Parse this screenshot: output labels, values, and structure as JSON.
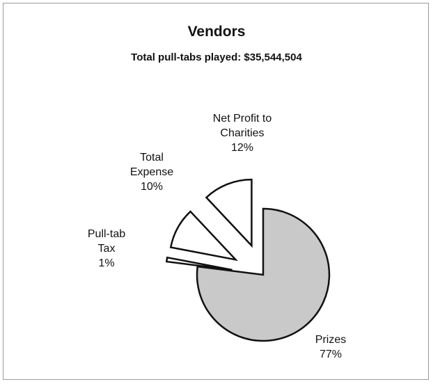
{
  "chart_data": {
    "type": "pie",
    "title": "Vendors",
    "subtitle": "Total pull-tabs played: $35,544,504",
    "categories": [
      "Prizes",
      "Pull-tab Tax",
      "Total Expense",
      "Net Profit to Charities"
    ],
    "values": [
      77,
      1,
      10,
      12
    ],
    "value_labels": [
      "77%",
      "1%",
      "10%",
      "12%"
    ],
    "colors": [
      "#c9c9c9",
      "#ffffff",
      "#ffffff",
      "#ffffff"
    ]
  }
}
